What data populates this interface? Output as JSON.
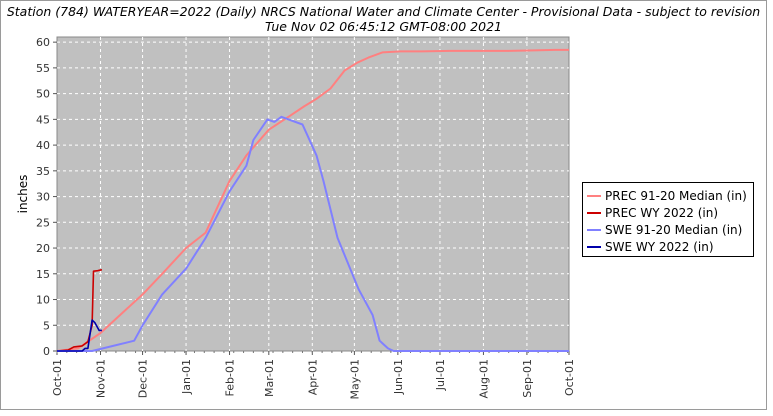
{
  "header": {
    "line1": "Station (784) WATERYEAR=2022 (Daily) NRCS National Water and Climate Center - Provisional Data - subject to revision",
    "line2": "Tue Nov 02 06:45:12 GMT-08:00 2021"
  },
  "chart_data": {
    "type": "line",
    "ylabel": "inches",
    "ylim": [
      0,
      61
    ],
    "yticks": [
      0,
      5,
      10,
      15,
      20,
      25,
      30,
      35,
      40,
      45,
      50,
      55,
      60
    ],
    "xticks": [
      "Oct-01",
      "Nov-01",
      "Dec-01",
      "Jan-01",
      "Feb-01",
      "Mar-01",
      "Apr-01",
      "May-01",
      "Jun-01",
      "Jul-01",
      "Aug-01",
      "Sep-01",
      "Oct-01"
    ],
    "grid": true,
    "legend_position": "right",
    "background": "#c0c0c0",
    "series": [
      {
        "name": "PREC 91-20 Median (in)",
        "color": "#ff8080",
        "x": [
          0,
          15,
          31,
          45,
          61,
          75,
          92,
          106,
          123,
          135,
          151,
          165,
          176,
          185,
          195,
          205,
          214,
          222,
          232,
          245,
          255,
          260,
          280,
          300,
          320,
          340,
          355,
          365
        ],
        "y": [
          0,
          0.5,
          3.5,
          7,
          11,
          15,
          20,
          23,
          33,
          38,
          43,
          45.5,
          47.5,
          49,
          51,
          54.5,
          56,
          57,
          58,
          58.2,
          58.2,
          58.2,
          58.3,
          58.3,
          58.3,
          58.4,
          58.5,
          58.5
        ]
      },
      {
        "name": "PREC WY 2022  (in)",
        "color": "#cc0000",
        "x": [
          0,
          8,
          12,
          15,
          18,
          22,
          25,
          26,
          29,
          32
        ],
        "y": [
          0,
          0.2,
          0.8,
          0.9,
          1.0,
          1.8,
          5,
          15.5,
          15.6,
          15.8
        ]
      },
      {
        "name": "SWE 91-20 Median (in)",
        "color": "#8080ff",
        "x": [
          0,
          25,
          40,
          55,
          61,
          75,
          92,
          106,
          123,
          135,
          140,
          150,
          155,
          160,
          165,
          175,
          185,
          190,
          200,
          215,
          225,
          230,
          236,
          240,
          250,
          300,
          365
        ],
        "y": [
          0,
          0,
          1,
          2,
          5,
          11,
          16,
          22,
          31,
          36,
          41,
          45,
          44.5,
          45.5,
          45,
          44,
          38,
          33,
          22,
          12,
          7,
          2,
          0.5,
          0,
          0,
          0,
          0
        ]
      },
      {
        "name": "SWE WY 2022  (in)",
        "color": "#0000aa",
        "x": [
          0,
          18,
          20,
          22,
          25,
          27,
          30,
          32
        ],
        "y": [
          0,
          0,
          0.5,
          0.5,
          6,
          5.5,
          4,
          4
        ]
      }
    ]
  }
}
